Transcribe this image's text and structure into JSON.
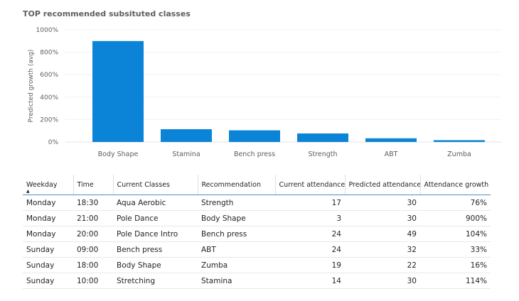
{
  "title": "TOP recommended subsituted classes",
  "chart_data": {
    "type": "bar",
    "title": "TOP recommended subsituted classes",
    "xlabel": "",
    "ylabel": "Predicted growth (avg)",
    "categories": [
      "Body Shape",
      "Stamina",
      "Bench press",
      "Strength",
      "ABT",
      "Zumba"
    ],
    "values": [
      900,
      114,
      104,
      76,
      33,
      16
    ],
    "ylim": [
      0,
      1000
    ],
    "yticks": [
      0,
      200,
      400,
      600,
      800,
      1000
    ],
    "ytick_labels": [
      "0%",
      "200%",
      "400%",
      "600%",
      "800%",
      "1000%"
    ],
    "grid": true,
    "color": "#0b84d8"
  },
  "table": {
    "headers": [
      "Weekday",
      "Time",
      "Current Classes",
      "Recommendation",
      "Current attendance",
      "Predicted attendance",
      "Attendance growth"
    ],
    "sort_indicator": "▲",
    "rows": [
      [
        "Monday",
        "18:30",
        "Aqua Aerobic",
        "Strength",
        "17",
        "30",
        "76%"
      ],
      [
        "Monday",
        "21:00",
        "Pole Dance",
        "Body Shape",
        "3",
        "30",
        "900%"
      ],
      [
        "Monday",
        "20:00",
        "Pole Dance Intro",
        "Bench press",
        "24",
        "49",
        "104%"
      ],
      [
        "Sunday",
        "09:00",
        "Bench press",
        "ABT",
        "24",
        "32",
        "33%"
      ],
      [
        "Sunday",
        "18:00",
        "Body Shape",
        "Zumba",
        "19",
        "22",
        "16%"
      ],
      [
        "Sunday",
        "10:00",
        "Stretching",
        "Stamina",
        "14",
        "30",
        "114%"
      ]
    ]
  }
}
